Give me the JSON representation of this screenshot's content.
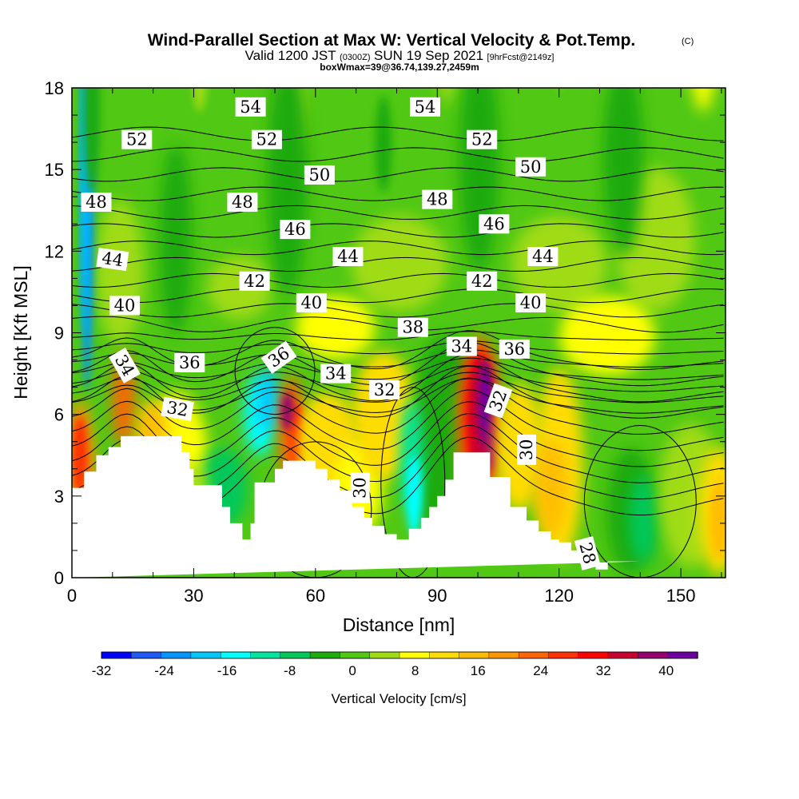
{
  "title": {
    "main": "Wind-Parallel Section at Max W: Vertical Velocity & Pot.Temp.",
    "copyright": "(C)",
    "line2_a": "Valid 1200 JST",
    "line2_b": "(0300Z)",
    "line2_c": "SUN 19 Sep 2021",
    "line2_d": "[9hrFcst@2149z]",
    "line3": "boxWmax=39@36.74,139.27,2459m"
  },
  "chart_data": {
    "type": "heatmap",
    "xlabel": "Distance [nm]",
    "ylabel": "Height [Kft MSL]",
    "xlim": [
      0,
      161
    ],
    "ylim": [
      0,
      18
    ],
    "x_ticks": [
      "0",
      "30",
      "60",
      "90",
      "120",
      "150"
    ],
    "x_tick_values": [
      0,
      30,
      60,
      90,
      120,
      150
    ],
    "y_ticks": [
      "0",
      "3",
      "6",
      "9",
      "12",
      "15",
      "18"
    ],
    "y_tick_values": [
      0,
      3,
      6,
      9,
      12,
      15,
      18
    ],
    "colorbar": {
      "label": "Vertical Velocity [cm/s]",
      "tick_labels": [
        "-32",
        "-24",
        "-16",
        "-8",
        "0",
        "8",
        "16",
        "24",
        "32",
        "40"
      ],
      "tick_values": [
        -32,
        -24,
        -16,
        -8,
        0,
        8,
        16,
        24,
        32,
        40
      ],
      "levels": [
        -32,
        -28,
        -24,
        -20,
        -16,
        -12,
        -8,
        -4,
        0,
        4,
        8,
        12,
        16,
        20,
        24,
        28,
        32,
        36,
        40,
        44
      ],
      "colors": [
        "#0000ff",
        "#1f5af5",
        "#0096ff",
        "#00c8ff",
        "#00ffff",
        "#00e6a0",
        "#00c85a",
        "#1eaa0a",
        "#50c814",
        "#a0dc14",
        "#ffff00",
        "#ffdc00",
        "#ffbe00",
        "#ff9600",
        "#ff6400",
        "#ff3200",
        "#ff0000",
        "#c80032",
        "#96006e",
        "#6e00a0"
      ]
    },
    "terrain": {
      "x": [
        0,
        3,
        3,
        6,
        6,
        9,
        9,
        12,
        12,
        15,
        15,
        27,
        27,
        29,
        29,
        30,
        30,
        37,
        37,
        39,
        39,
        42,
        42,
        44,
        44,
        45,
        45,
        50,
        50,
        52,
        52,
        60,
        60,
        63,
        63,
        66,
        66,
        69,
        69,
        72,
        72,
        74,
        74,
        77,
        77,
        80,
        80,
        83,
        83,
        86,
        86,
        88,
        88,
        90,
        90,
        92,
        92,
        94,
        94,
        97,
        97,
        103,
        103,
        108,
        108,
        112,
        112,
        115,
        115,
        118,
        118,
        120,
        120,
        123,
        123,
        126,
        126,
        129,
        129,
        132,
        132,
        140,
        140,
        161
      ],
      "y": [
        3.3,
        3.3,
        3.9,
        3.9,
        4.5,
        4.5,
        4.8,
        4.8,
        5.2,
        5.2,
        5.2,
        5.2,
        4.6,
        4.6,
        4.0,
        4.0,
        3.4,
        3.4,
        2.6,
        2.6,
        2.0,
        2.0,
        1.4,
        1.4,
        2.0,
        2.0,
        3.5,
        3.5,
        4.0,
        4.0,
        4.3,
        4.3,
        4.0,
        4.0,
        3.6,
        3.6,
        3.2,
        3.2,
        2.6,
        2.6,
        2.2,
        2.2,
        1.9,
        1.9,
        1.6,
        1.6,
        1.4,
        1.4,
        1.8,
        1.8,
        2.2,
        2.2,
        2.6,
        2.6,
        3.0,
        3.0,
        3.6,
        3.6,
        4.6,
        4.6,
        4.6,
        4.6,
        3.7,
        3.7,
        2.6,
        2.6,
        2.1,
        2.1,
        1.7,
        1.7,
        1.4,
        1.4,
        1.3,
        1.3,
        1.0,
        1.0,
        0.7,
        0.7,
        0.3,
        0.3,
        0.6,
        0.6,
        0.6
      ]
    },
    "theta_contour_labels": [
      {
        "text": "54",
        "x": 44,
        "y": 17.3,
        "angle": 0
      },
      {
        "text": "54",
        "x": 87,
        "y": 17.3,
        "angle": 0
      },
      {
        "text": "52",
        "x": 16,
        "y": 16.1,
        "angle": 0
      },
      {
        "text": "52",
        "x": 48,
        "y": 16.1,
        "angle": 0
      },
      {
        "text": "52",
        "x": 101,
        "y": 16.1,
        "angle": 0
      },
      {
        "text": "50",
        "x": 61,
        "y": 14.8,
        "angle": 0
      },
      {
        "text": "50",
        "x": 113,
        "y": 15.1,
        "angle": 0
      },
      {
        "text": "48",
        "x": 6,
        "y": 13.8,
        "angle": 0
      },
      {
        "text": "48",
        "x": 42,
        "y": 13.8,
        "angle": 0
      },
      {
        "text": "48",
        "x": 90,
        "y": 13.9,
        "angle": 0
      },
      {
        "text": "46",
        "x": 55,
        "y": 12.8,
        "angle": 0
      },
      {
        "text": "46",
        "x": 104,
        "y": 13.0,
        "angle": 0
      },
      {
        "text": "44",
        "x": 10,
        "y": 11.7,
        "angle": 8
      },
      {
        "text": "44",
        "x": 68,
        "y": 11.8,
        "angle": 0
      },
      {
        "text": "44",
        "x": 116,
        "y": 11.8,
        "angle": 0
      },
      {
        "text": "42",
        "x": 45,
        "y": 10.9,
        "angle": 0
      },
      {
        "text": "42",
        "x": 101,
        "y": 10.9,
        "angle": 0
      },
      {
        "text": "40",
        "x": 13,
        "y": 10.0,
        "angle": 0
      },
      {
        "text": "40",
        "x": 59,
        "y": 10.1,
        "angle": 0
      },
      {
        "text": "40",
        "x": 113,
        "y": 10.1,
        "angle": 0
      },
      {
        "text": "38",
        "x": 84,
        "y": 9.2,
        "angle": 0
      },
      {
        "text": "36",
        "x": 29,
        "y": 7.9,
        "angle": 0
      },
      {
        "text": "36",
        "x": 51,
        "y": 8.1,
        "angle": -35
      },
      {
        "text": "36",
        "x": 109,
        "y": 8.4,
        "angle": 0
      },
      {
        "text": "34",
        "x": 13,
        "y": 7.8,
        "angle": 60
      },
      {
        "text": "34",
        "x": 65,
        "y": 7.5,
        "angle": 0
      },
      {
        "text": "34",
        "x": 96,
        "y": 8.5,
        "angle": 0
      },
      {
        "text": "32",
        "x": 26,
        "y": 6.2,
        "angle": 10
      },
      {
        "text": "32",
        "x": 77,
        "y": 6.9,
        "angle": 0
      },
      {
        "text": "32",
        "x": 105,
        "y": 6.5,
        "angle": -70
      },
      {
        "text": "30",
        "x": 71,
        "y": 3.3,
        "angle": -90
      },
      {
        "text": "30",
        "x": 112,
        "y": 4.7,
        "angle": -90
      },
      {
        "text": "28",
        "x": 127,
        "y": 0.9,
        "angle": 75
      }
    ]
  }
}
